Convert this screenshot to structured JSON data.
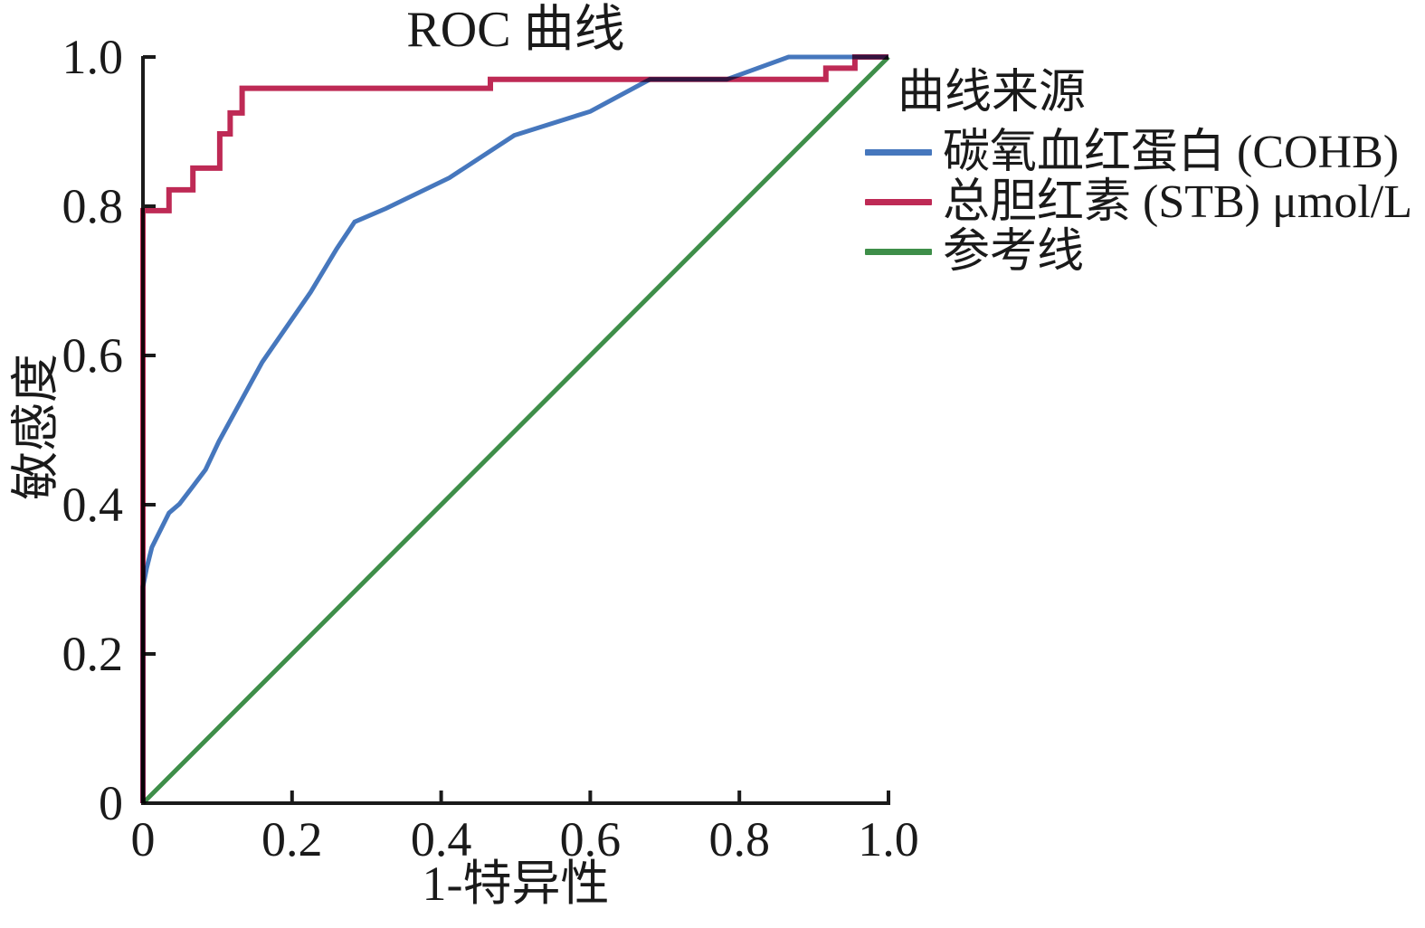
{
  "figure": {
    "title": "ROC 曲线",
    "x_label": "1-特异性",
    "y_label": "敏感度",
    "legend_title": "曲线来源"
  },
  "chart_data": {
    "type": "line",
    "title": "ROC 曲线",
    "xlabel": "1-特异性",
    "ylabel": "敏感度",
    "xlim": [
      0,
      1
    ],
    "ylim": [
      0,
      1
    ],
    "grid": false,
    "legend_position": "right",
    "legend_title": "曲线来源",
    "axis_color": "#1a1a1a",
    "x_tick_values": [
      0,
      0.2,
      0.4,
      0.6,
      0.8,
      1.0
    ],
    "x_tick_labels": [
      "0",
      "0.2",
      "0.4",
      "0.6",
      "0.8",
      "1.0"
    ],
    "y_tick_values": [
      0,
      0.2,
      0.4,
      0.6,
      0.8,
      1.0
    ],
    "y_tick_labels": [
      "0",
      "0.2",
      "0.4",
      "0.6",
      "0.8",
      "1.0"
    ],
    "series": [
      {
        "key": "reference",
        "name": "参考线",
        "color": "#3e8e49",
        "width": 5,
        "x": [
          0,
          1
        ],
        "y": [
          0,
          1
        ]
      },
      {
        "key": "cohb",
        "name": "碳氧血红蛋白 (COHB)",
        "color": "#4677bd",
        "width": 5,
        "x": [
          0,
          0,
          0.005,
          0.012,
          0.017,
          0.035,
          0.049,
          0.065,
          0.084,
          0.102,
          0.16,
          0.225,
          0.26,
          0.284,
          0.326,
          0.411,
          0.498,
          0.6,
          0.68,
          0.783,
          0.866,
          1.0
        ],
        "y": [
          0,
          0.29,
          0.315,
          0.343,
          0.353,
          0.389,
          0.401,
          0.422,
          0.447,
          0.485,
          0.591,
          0.685,
          0.743,
          0.779,
          0.797,
          0.838,
          0.895,
          0.927,
          0.97,
          0.97,
          1.0,
          1.0
        ]
      },
      {
        "key": "stb",
        "name": "总胆红素 (STB) μmol/L",
        "color": "#be2a55",
        "width": 6,
        "x": [
          0,
          0,
          0.035,
          0.035,
          0.067,
          0.067,
          0.103,
          0.103,
          0.117,
          0.117,
          0.133,
          0.133,
          0.466,
          0.466,
          0.916,
          0.916,
          0.955,
          0.955,
          1.0
        ],
        "y": [
          0,
          0.794,
          0.794,
          0.822,
          0.822,
          0.851,
          0.851,
          0.897,
          0.897,
          0.925,
          0.925,
          0.958,
          0.958,
          0.97,
          0.97,
          0.985,
          0.985,
          1.0,
          1.0
        ]
      }
    ],
    "legend_order": [
      "cohb",
      "stb",
      "reference"
    ]
  }
}
